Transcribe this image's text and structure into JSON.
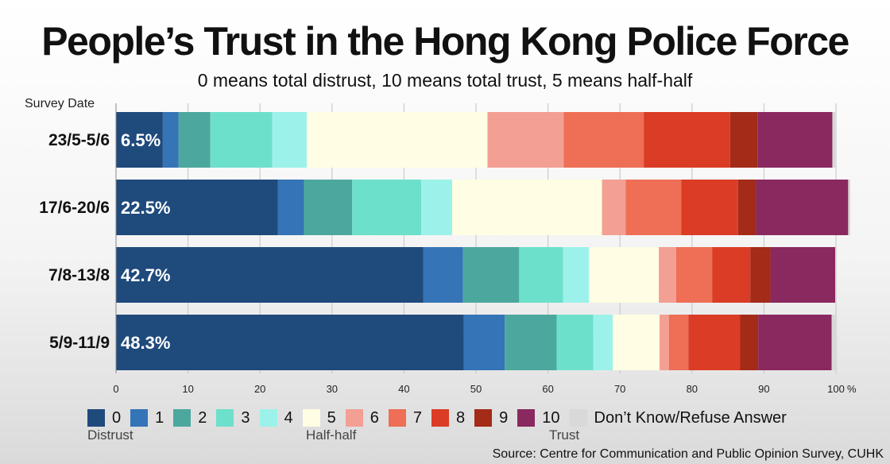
{
  "chart_data": {
    "type": "bar",
    "orientation": "horizontal",
    "stacked": true,
    "title": "People’s Trust in the Hong Kong Police Force",
    "subtitle": "0 means total distrust, 10 means total trust, 5 means half-half",
    "ylabel": "Survey Date",
    "categories": [
      "23/5-5/6",
      "17/6-20/6",
      "7/8-13/8",
      "5/9-11/9"
    ],
    "data_labels": [
      "6.5%",
      "22.5%",
      "42.7%",
      "48.3%"
    ],
    "series": [
      {
        "name": "0",
        "color": "#1f4a7c",
        "values": [
          6.5,
          22.5,
          42.7,
          48.3
        ]
      },
      {
        "name": "1",
        "color": "#3574b6",
        "values": [
          2.2,
          3.6,
          5.5,
          5.7
        ]
      },
      {
        "name": "2",
        "color": "#4ca89e",
        "values": [
          4.4,
          6.7,
          7.8,
          7.2
        ]
      },
      {
        "name": "3",
        "color": "#6de0cc",
        "values": [
          8.6,
          9.6,
          6.1,
          5.1
        ]
      },
      {
        "name": "4",
        "color": "#9cf2ea",
        "values": [
          4.8,
          4.3,
          3.6,
          2.7
        ]
      },
      {
        "name": "5",
        "color": "#fffde3",
        "values": [
          25.1,
          20.8,
          9.7,
          6.5
        ]
      },
      {
        "name": "6",
        "color": "#f39f93",
        "values": [
          10.6,
          3.3,
          2.4,
          1.3
        ]
      },
      {
        "name": "7",
        "color": "#ee6e56",
        "values": [
          11.1,
          7.7,
          5.0,
          2.7
        ]
      },
      {
        "name": "8",
        "color": "#db3c26",
        "values": [
          12.0,
          7.9,
          5.3,
          7.2
        ]
      },
      {
        "name": "9",
        "color": "#a32b18",
        "values": [
          3.8,
          2.5,
          2.8,
          2.5
        ]
      },
      {
        "name": "10",
        "color": "#8a2860",
        "values": [
          10.4,
          12.8,
          9.0,
          10.2
        ]
      },
      {
        "name": "Don’t Know/Refuse Answer",
        "color": "#d9d9d9",
        "values": [
          0.5,
          0.3,
          0.1,
          0.6
        ]
      }
    ],
    "xlim": [
      0,
      100
    ],
    "xticks": [
      0,
      10,
      20,
      30,
      40,
      50,
      60,
      70,
      80,
      90,
      100
    ],
    "x_unit": "%",
    "grid": true,
    "legend_position": "bottom"
  },
  "scale_notes": {
    "left": "Distrust",
    "middle": "Half-half",
    "right": "Trust"
  },
  "source": "Source: Centre for Communication and Public Opinion Survey, CUHK"
}
